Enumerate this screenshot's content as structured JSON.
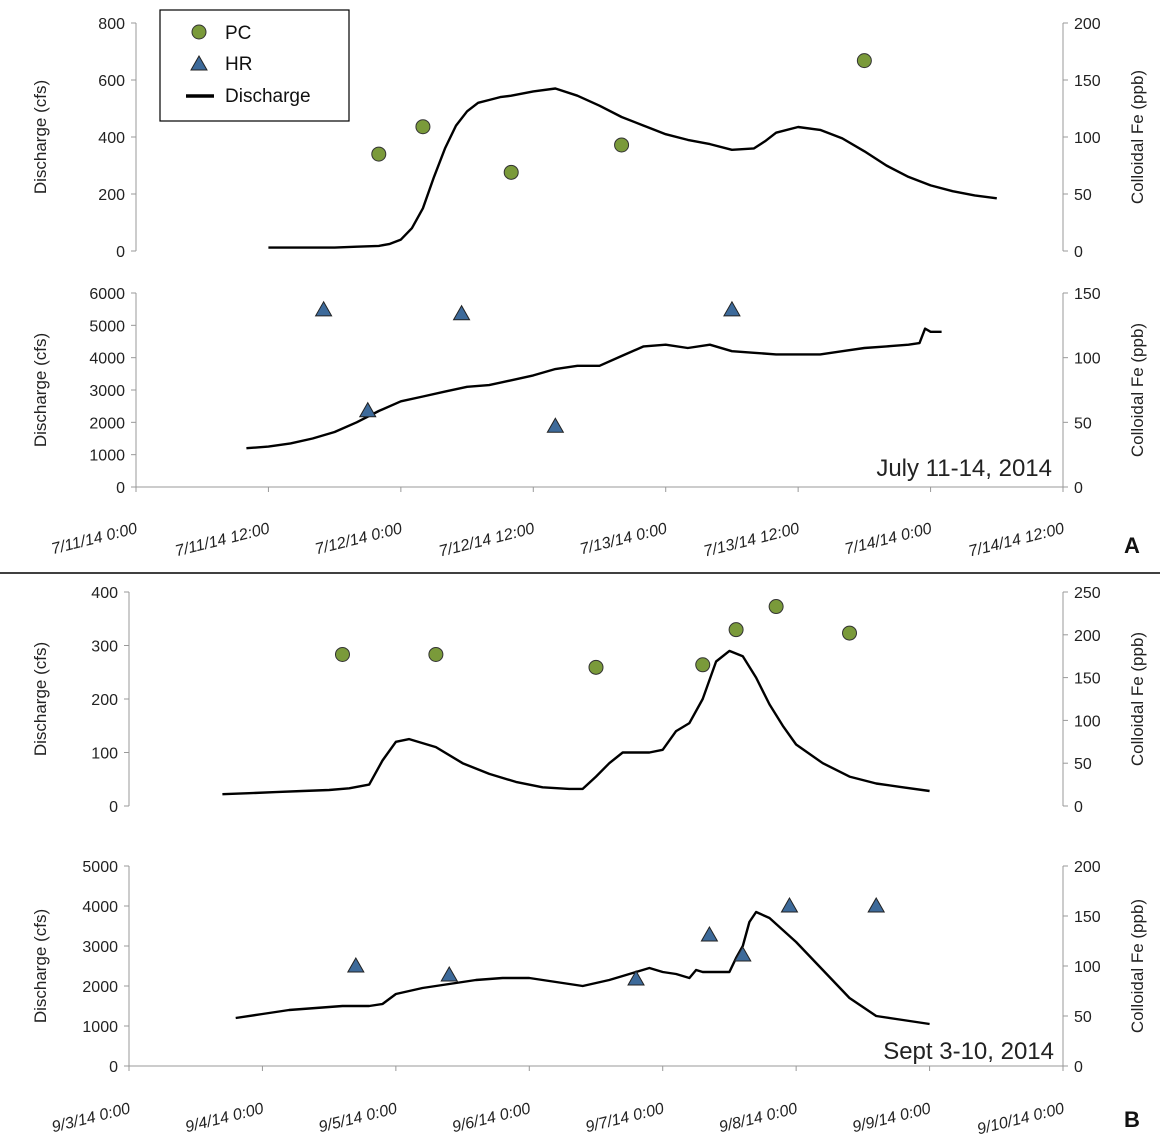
{
  "colors": {
    "pc": "#7a9a3a",
    "hr": "#3d6a9a",
    "discharge": "#000000"
  },
  "legend": {
    "pc": "PC",
    "hr": "HR",
    "discharge": "Discharge"
  },
  "panels": {
    "A": {
      "letter": "A",
      "date_label": "July 11-14, 2014"
    },
    "B": {
      "letter": "B",
      "date_label": "Sept 3-10, 2014"
    }
  },
  "chart_data": [
    {
      "id": "A-PC",
      "type": "line+scatter",
      "panel": "A",
      "ylabel": "Discharge (cfs)",
      "ylim": [
        0,
        800
      ],
      "yticks": [
        0,
        200,
        400,
        600,
        800
      ],
      "y2label": "Colloidal Fe (ppb)",
      "y2lim": [
        0,
        200
      ],
      "y2ticks": [
        0,
        50,
        100,
        150,
        200
      ],
      "xlim": [
        0,
        84
      ],
      "discharge": {
        "name": "Discharge",
        "x": [
          12,
          14,
          16,
          18,
          20,
          22,
          23,
          24,
          25,
          26,
          27,
          28,
          29,
          30,
          31,
          32,
          33,
          34,
          36,
          38,
          40,
          42,
          44,
          46,
          48,
          50,
          52,
          54,
          56,
          57,
          58,
          60,
          62,
          64,
          66,
          68,
          70,
          72,
          74,
          76,
          78
        ],
        "y": [
          12,
          12,
          12,
          12,
          15,
          18,
          25,
          40,
          80,
          150,
          260,
          360,
          440,
          490,
          520,
          530,
          540,
          545,
          560,
          570,
          545,
          510,
          470,
          440,
          410,
          390,
          375,
          355,
          360,
          385,
          415,
          435,
          425,
          395,
          350,
          300,
          260,
          230,
          210,
          195,
          185
        ]
      },
      "scatter": {
        "name": "PC",
        "marker": "circle",
        "x": [
          22,
          26,
          34,
          44,
          66
        ],
        "y": [
          85,
          109,
          69,
          93,
          167
        ]
      }
    },
    {
      "id": "A-HR",
      "type": "line+scatter",
      "panel": "A",
      "ylabel": "Discharge (cfs)",
      "ylim": [
        0,
        6000
      ],
      "yticks": [
        0,
        1000,
        2000,
        3000,
        4000,
        5000,
        6000
      ],
      "y2label": "Colloidal Fe (ppb)",
      "y2lim": [
        0,
        150
      ],
      "y2ticks": [
        0,
        50,
        100,
        150
      ],
      "xlim": [
        0,
        84
      ],
      "xticks": [
        "7/11/14 0:00",
        "7/11/14 12:00",
        "7/12/14 0:00",
        "7/12/14 12:00",
        "7/13/14 0:00",
        "7/13/14 12:00",
        "7/14/14 0:00",
        "7/14/14 12:00"
      ],
      "discharge": {
        "name": "Discharge",
        "x": [
          10,
          12,
          14,
          16,
          18,
          20,
          22,
          24,
          26,
          28,
          30,
          32,
          34,
          36,
          38,
          40,
          42,
          44,
          46,
          48,
          50,
          52,
          54,
          56,
          58,
          60,
          62,
          64,
          66,
          68,
          70,
          71,
          71.5,
          72,
          73
        ],
        "y": [
          1200,
          1250,
          1350,
          1500,
          1700,
          2000,
          2350,
          2650,
          2800,
          2950,
          3100,
          3150,
          3300,
          3450,
          3650,
          3750,
          3750,
          4050,
          4350,
          4400,
          4300,
          4400,
          4200,
          4150,
          4100,
          4100,
          4100,
          4200,
          4300,
          4350,
          4400,
          4450,
          4900,
          4800,
          4800
        ]
      },
      "scatter": {
        "name": "HR",
        "marker": "triangle",
        "x": [
          17,
          21,
          29.5,
          38,
          54
        ],
        "y": [
          137,
          59,
          134,
          47,
          137
        ]
      }
    },
    {
      "id": "B-PC",
      "type": "line+scatter",
      "panel": "B",
      "ylabel": "Discharge (cfs)",
      "ylim": [
        0,
        400
      ],
      "yticks": [
        0,
        100,
        200,
        300,
        400
      ],
      "y2label": "Colloidal Fe (ppb)",
      "y2lim": [
        0,
        250
      ],
      "y2ticks": [
        0,
        50,
        100,
        150,
        200,
        250
      ],
      "xlim": [
        0,
        7
      ],
      "discharge": {
        "name": "Discharge",
        "x": [
          0.7,
          0.9,
          1.1,
          1.3,
          1.5,
          1.65,
          1.8,
          1.9,
          2.0,
          2.1,
          2.3,
          2.5,
          2.7,
          2.9,
          3.1,
          3.3,
          3.4,
          3.5,
          3.6,
          3.7,
          3.8,
          3.9,
          4.0,
          4.1,
          4.2,
          4.3,
          4.4,
          4.5,
          4.6,
          4.7,
          4.8,
          4.9,
          5.0,
          5.2,
          5.4,
          5.6,
          5.8,
          6.0
        ],
        "y": [
          22,
          24,
          26,
          28,
          30,
          33,
          40,
          85,
          120,
          125,
          110,
          80,
          60,
          45,
          35,
          32,
          32,
          55,
          80,
          100,
          100,
          100,
          105,
          140,
          155,
          200,
          270,
          290,
          280,
          240,
          190,
          150,
          115,
          80,
          55,
          42,
          35,
          28
        ]
      },
      "scatter": {
        "name": "PC",
        "marker": "circle",
        "x": [
          1.6,
          2.3,
          3.5,
          4.3,
          4.55,
          4.85,
          5.4
        ],
        "y": [
          177,
          177,
          162,
          165,
          206,
          233,
          202
        ]
      }
    },
    {
      "id": "B-HR",
      "type": "line+scatter",
      "panel": "B",
      "ylabel": "Discharge (cfs)",
      "ylim": [
        0,
        5000
      ],
      "yticks": [
        0,
        1000,
        2000,
        3000,
        4000,
        5000
      ],
      "y2label": "Colloidal Fe (ppb)",
      "y2lim": [
        0,
        200
      ],
      "y2ticks": [
        0,
        50,
        100,
        150,
        200
      ],
      "xlim": [
        0,
        7
      ],
      "xticks": [
        "9/3/14 0:00",
        "9/4/14 0:00",
        "9/5/14 0:00",
        "9/6/14 0:00",
        "9/7/14 0:00",
        "9/8/14 0:00",
        "9/9/14 0:00",
        "9/10/14 0:00"
      ],
      "discharge": {
        "name": "Discharge",
        "x": [
          0.8,
          1.0,
          1.2,
          1.4,
          1.6,
          1.8,
          1.9,
          2.0,
          2.2,
          2.4,
          2.6,
          2.8,
          3.0,
          3.2,
          3.4,
          3.6,
          3.7,
          3.8,
          3.9,
          4.0,
          4.1,
          4.2,
          4.25,
          4.3,
          4.4,
          4.5,
          4.55,
          4.6,
          4.65,
          4.7,
          4.8,
          5.0,
          5.2,
          5.4,
          5.6,
          5.8,
          6.0
        ],
        "y": [
          1200,
          1300,
          1400,
          1450,
          1500,
          1500,
          1550,
          1800,
          1950,
          2050,
          2150,
          2200,
          2200,
          2100,
          2000,
          2150,
          2250,
          2350,
          2450,
          2350,
          2300,
          2200,
          2400,
          2350,
          2350,
          2350,
          2700,
          3000,
          3600,
          3850,
          3700,
          3100,
          2400,
          1700,
          1250,
          1150,
          1050
        ]
      },
      "scatter": {
        "name": "HR",
        "marker": "triangle",
        "x": [
          1.7,
          2.4,
          3.8,
          4.35,
          4.6,
          4.95,
          5.6
        ],
        "y": [
          100,
          91,
          87,
          131,
          111,
          160,
          160
        ]
      }
    }
  ]
}
